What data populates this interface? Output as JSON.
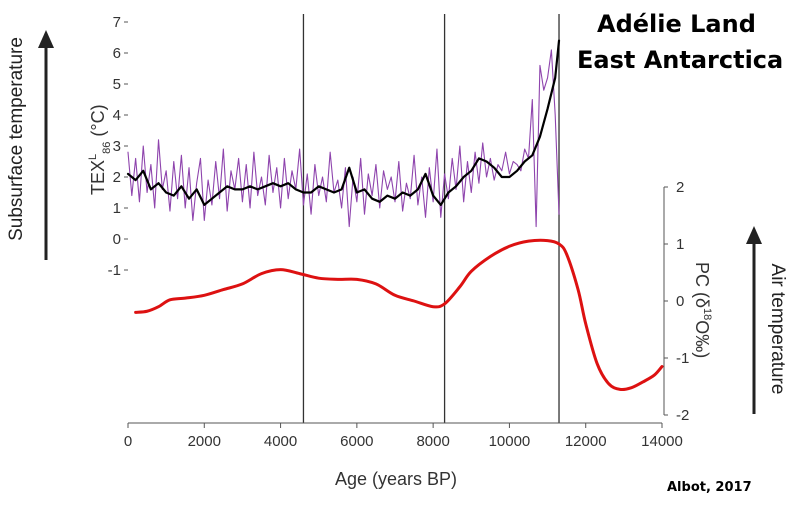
{
  "titles": {
    "line1": "Adélie Land",
    "line2": "East Antarctica"
  },
  "credit": "Albot, 2017",
  "side_labels": {
    "left": "Subsurface temperature",
    "right": "Air temperature"
  },
  "chart_data": {
    "type": "line",
    "x_axis": {
      "label": "Age (years BP)",
      "range": [
        0,
        14000
      ],
      "ticks": [
        0,
        2000,
        4000,
        6000,
        8000,
        10000,
        12000,
        14000
      ],
      "tick_labels": [
        "0",
        "2000",
        "4000",
        "6000",
        "8000",
        "10000",
        "12000",
        "14000"
      ]
    },
    "y_left": {
      "label_main": "TEX",
      "label_sup": "L",
      "label_sub": "86",
      "label_unit": "(°C)",
      "range": [
        -1,
        7
      ],
      "ticks": [
        -1,
        0,
        1,
        2,
        3,
        4,
        5,
        6,
        7
      ],
      "tick_labels": [
        "-1",
        "0",
        "1",
        "2",
        "3",
        "4",
        "5",
        "6",
        "7"
      ]
    },
    "y_right": {
      "label_main": "PC (δ",
      "label_sup": "18",
      "label_rest": "O‰)",
      "range": [
        -2,
        2
      ],
      "ticks": [
        -2,
        -1,
        0,
        1,
        2
      ],
      "tick_labels": [
        "-2",
        "-1",
        "0",
        "1",
        "2"
      ]
    },
    "vertical_lines": [
      4600,
      8300,
      11300
    ],
    "series": [
      {
        "axis": "left",
        "color": "#8e44ad",
        "x": [
          0,
          100,
          200,
          300,
          400,
          500,
          600,
          700,
          800,
          900,
          1000,
          1100,
          1200,
          1300,
          1400,
          1500,
          1600,
          1700,
          1800,
          1900,
          2000,
          2100,
          2200,
          2300,
          2400,
          2500,
          2600,
          2700,
          2800,
          2900,
          3000,
          3100,
          3200,
          3300,
          3400,
          3500,
          3600,
          3700,
          3800,
          3900,
          4000,
          4100,
          4200,
          4300,
          4400,
          4500,
          4600,
          4700,
          4800,
          4900,
          5000,
          5100,
          5200,
          5300,
          5400,
          5500,
          5600,
          5700,
          5800,
          5900,
          6000,
          6100,
          6200,
          6300,
          6400,
          6500,
          6600,
          6700,
          6800,
          6900,
          7000,
          7100,
          7200,
          7300,
          7400,
          7500,
          7600,
          7700,
          7800,
          7900,
          8000,
          8100,
          8200,
          8300,
          8400,
          8500,
          8600,
          8700,
          8800,
          8900,
          9000,
          9100,
          9200,
          9300,
          9400,
          9500,
          9600,
          9700,
          9800,
          9900,
          10000,
          10100,
          10200,
          10300,
          10400,
          10500,
          10600,
          10700,
          10800,
          10900,
          11000,
          11100,
          11200,
          11300
        ],
        "values": [
          2.8,
          1.4,
          2.6,
          1.2,
          3.0,
          1.5,
          2.4,
          1.0,
          3.2,
          1.6,
          2.2,
          0.9,
          2.5,
          1.3,
          2.7,
          1.0,
          2.3,
          0.6,
          1.8,
          2.6,
          0.6,
          1.9,
          1.1,
          2.5,
          1.3,
          2.9,
          0.9,
          2.2,
          1.6,
          2.6,
          1.2,
          2.4,
          1.0,
          2.8,
          1.4,
          2.0,
          1.1,
          2.7,
          1.5,
          2.3,
          1.0,
          2.6,
          1.3,
          2.2,
          1.6,
          2.9,
          1.1,
          2.1,
          0.8,
          2.4,
          1.4,
          2.0,
          1.2,
          2.8,
          1.5,
          1.9,
          1.0,
          2.3,
          0.4,
          2.0,
          1.2,
          2.6,
          0.8,
          2.1,
          1.4,
          2.4,
          1.0,
          2.2,
          1.6,
          2.0,
          1.2,
          2.5,
          0.9,
          1.8,
          1.3,
          2.7,
          1.1,
          2.0,
          0.7,
          2.3,
          1.2,
          2.9,
          0.7,
          2.1,
          1.3,
          2.6,
          1.6,
          3.0,
          1.2,
          2.5,
          1.5,
          2.8,
          1.8,
          3.1,
          2.0,
          2.6,
          1.9,
          2.4,
          2.2,
          2.8,
          2.1,
          2.5,
          2.4,
          2.2,
          2.9,
          2.6,
          4.5,
          0.4,
          5.6,
          4.8,
          5.2,
          6.1,
          4.0,
          0.8
        ],
        "name": ""
      },
      {
        "axis": "left",
        "color": "#000000",
        "x": [
          0,
          200,
          400,
          600,
          800,
          1000,
          1200,
          1400,
          1600,
          1800,
          2000,
          2200,
          2400,
          2600,
          2800,
          3000,
          3200,
          3400,
          3600,
          3800,
          4000,
          4200,
          4400,
          4600,
          4800,
          5000,
          5200,
          5400,
          5600,
          5800,
          6000,
          6200,
          6400,
          6600,
          6800,
          7000,
          7200,
          7400,
          7600,
          7800,
          8000,
          8200,
          8400,
          8600,
          8800,
          9000,
          9200,
          9400,
          9600,
          9800,
          10000,
          10200,
          10400,
          10600,
          10800,
          11000,
          11200,
          11300
        ],
        "values": [
          2.1,
          1.9,
          2.2,
          1.6,
          1.8,
          1.5,
          1.4,
          1.7,
          1.3,
          1.6,
          1.1,
          1.3,
          1.5,
          1.7,
          1.6,
          1.6,
          1.7,
          1.6,
          1.7,
          1.8,
          1.7,
          1.8,
          1.6,
          1.5,
          1.5,
          1.7,
          1.6,
          1.5,
          1.6,
          2.3,
          1.5,
          1.6,
          1.3,
          1.2,
          1.4,
          1.3,
          1.5,
          1.4,
          1.6,
          2.1,
          1.4,
          1.1,
          1.5,
          1.7,
          2.0,
          2.2,
          2.6,
          2.5,
          2.3,
          2.0,
          2.0,
          2.2,
          2.5,
          2.7,
          3.3,
          4.2,
          5.2,
          6.4
        ],
        "name": ""
      },
      {
        "axis": "right",
        "color": "#dd1111",
        "x": [
          200,
          500,
          800,
          1100,
          1500,
          2000,
          2500,
          3000,
          3500,
          4000,
          4500,
          5000,
          5500,
          6000,
          6500,
          7000,
          7500,
          8000,
          8300,
          8700,
          9000,
          9500,
          10000,
          10500,
          11000,
          11300,
          11500,
          11800,
          12000,
          12300,
          12600,
          12900,
          13200,
          13500,
          13800,
          14000
        ],
        "values": [
          -0.2,
          -0.18,
          -0.1,
          0.02,
          0.05,
          0.1,
          0.2,
          0.3,
          0.48,
          0.55,
          0.48,
          0.4,
          0.38,
          0.38,
          0.3,
          0.1,
          0.0,
          -0.1,
          -0.05,
          0.25,
          0.52,
          0.78,
          0.96,
          1.05,
          1.06,
          1.0,
          0.82,
          0.2,
          -0.4,
          -1.1,
          -1.45,
          -1.55,
          -1.52,
          -1.42,
          -1.3,
          -1.15
        ],
        "name": ""
      }
    ]
  }
}
